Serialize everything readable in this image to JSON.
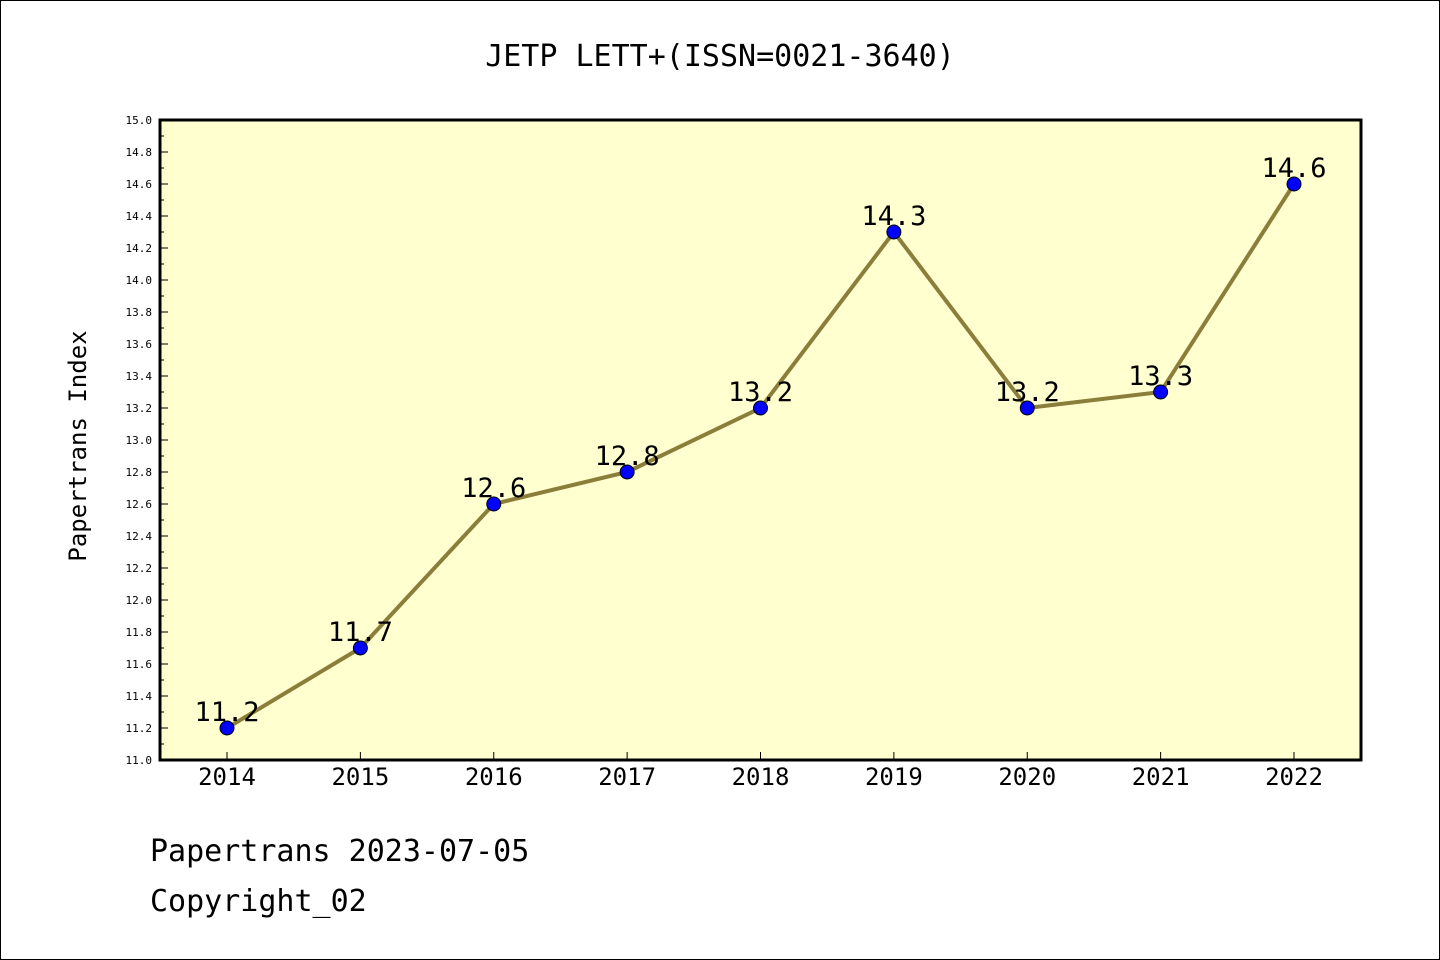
{
  "chart_data": {
    "type": "line",
    "title": "JETP LETT+(ISSN=0021-3640)",
    "xlabel": "",
    "ylabel": "Papertrans Index",
    "categories": [
      "2014",
      "2015",
      "2016",
      "2017",
      "2018",
      "2019",
      "2020",
      "2021",
      "2022"
    ],
    "series": [
      {
        "values": [
          11.2,
          11.7,
          12.6,
          12.8,
          13.2,
          14.3,
          13.2,
          13.3,
          14.6
        ],
        "data_labels": [
          "11.2",
          "11.7",
          "12.6",
          "12.8",
          "13.2",
          "14.3",
          "13.2",
          "13.3",
          "14.6"
        ]
      }
    ],
    "ylim": [
      11.0,
      15.0
    ],
    "y_ticks": [
      "11.0",
      "11.2",
      "11.4",
      "11.6",
      "11.8",
      "12.0",
      "12.2",
      "12.4",
      "12.6",
      "12.8",
      "13.0",
      "13.2",
      "13.4",
      "13.6",
      "13.8",
      "14.0",
      "14.2",
      "14.4",
      "14.6",
      "14.8",
      "15.0"
    ],
    "grid": false,
    "legend": "none",
    "colors": {
      "plot_background": "#ffffd0",
      "line": "#8b7d3a",
      "marker": "#0000ff"
    }
  },
  "footer": {
    "date_line": "Papertrans 2023-07-05",
    "copyright_line": "Copyright_02"
  }
}
